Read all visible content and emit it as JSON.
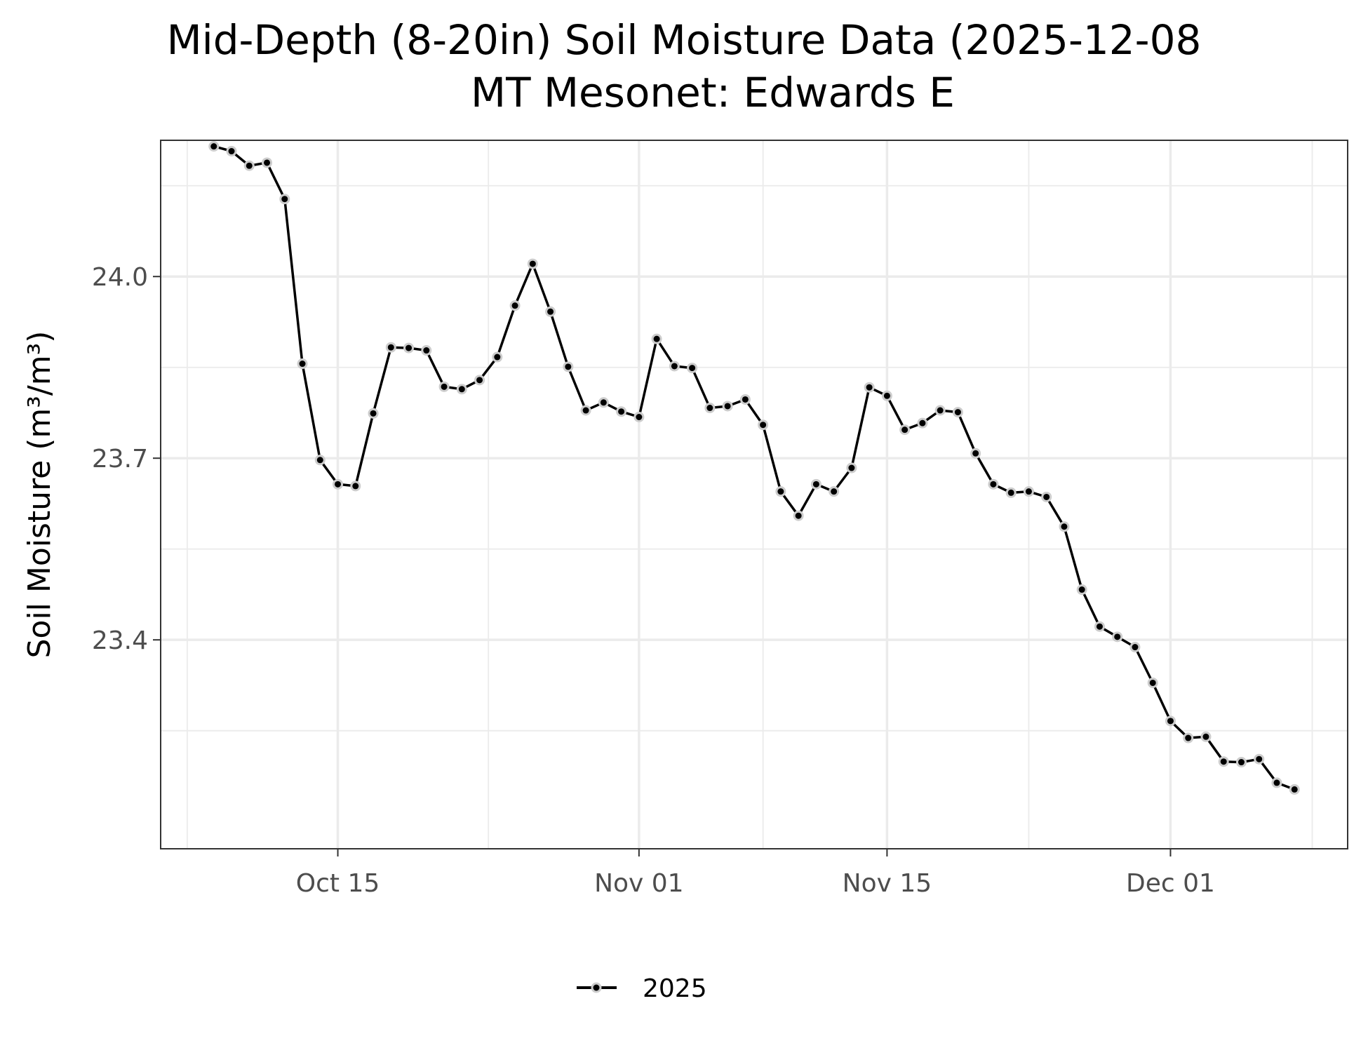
{
  "chart_data": {
    "type": "line",
    "title": "Mid-Depth (8-20in) Soil Moisture Data (2025-12-08",
    "subtitle": "MT Mesonet: Edwards E",
    "xlabel": "",
    "ylabel": "Soil Moisture (m³/m³)",
    "x_axis": {
      "type": "date",
      "range": [
        "2025-10-05",
        "2025-12-11"
      ],
      "ticks": [
        {
          "date": "2025-10-15",
          "label": "Oct 15"
        },
        {
          "date": "2025-11-01",
          "label": "Nov 01"
        },
        {
          "date": "2025-11-15",
          "label": "Nov 15"
        },
        {
          "date": "2025-12-01",
          "label": "Dec 01"
        }
      ]
    },
    "y_axis": {
      "range": [
        23.055,
        24.225
      ],
      "ticks": [
        {
          "value": 24.0,
          "label": "24.0"
        },
        {
          "value": 23.7,
          "label": "23.7"
        },
        {
          "value": 23.4,
          "label": "23.4"
        }
      ]
    },
    "grid": true,
    "legend": {
      "position": "bottom",
      "entries": [
        "2025"
      ]
    },
    "colors": {
      "line": "#000000",
      "point_halo": "#cccccc",
      "grid": "#ebebeb",
      "border": "#333333"
    },
    "series": [
      {
        "name": "2025",
        "x": [
          "2025-10-08",
          "2025-10-09",
          "2025-10-10",
          "2025-10-11",
          "2025-10-12",
          "2025-10-13",
          "2025-10-14",
          "2025-10-15",
          "2025-10-16",
          "2025-10-17",
          "2025-10-18",
          "2025-10-19",
          "2025-10-20",
          "2025-10-21",
          "2025-10-22",
          "2025-10-23",
          "2025-10-24",
          "2025-10-25",
          "2025-10-26",
          "2025-10-27",
          "2025-10-28",
          "2025-10-29",
          "2025-10-30",
          "2025-10-31",
          "2025-11-01",
          "2025-11-02",
          "2025-11-03",
          "2025-11-04",
          "2025-11-05",
          "2025-11-06",
          "2025-11-07",
          "2025-11-08",
          "2025-11-09",
          "2025-11-10",
          "2025-11-11",
          "2025-11-12",
          "2025-11-13",
          "2025-11-14",
          "2025-11-15",
          "2025-11-16",
          "2025-11-17",
          "2025-11-18",
          "2025-11-19",
          "2025-11-20",
          "2025-11-21",
          "2025-11-22",
          "2025-11-23",
          "2025-11-24",
          "2025-11-25",
          "2025-11-26",
          "2025-11-27",
          "2025-11-28",
          "2025-11-29",
          "2025-11-30",
          "2025-12-01",
          "2025-12-02",
          "2025-12-03",
          "2025-12-04",
          "2025-12-05",
          "2025-12-06",
          "2025-12-07",
          "2025-12-08"
        ],
        "y": [
          24.215,
          24.207,
          24.183,
          24.188,
          24.128,
          23.856,
          23.697,
          23.657,
          23.654,
          23.774,
          23.883,
          23.882,
          23.878,
          23.818,
          23.814,
          23.829,
          23.867,
          23.952,
          24.021,
          23.942,
          23.851,
          23.779,
          23.792,
          23.777,
          23.768,
          23.897,
          23.852,
          23.849,
          23.783,
          23.786,
          23.797,
          23.755,
          23.645,
          23.605,
          23.657,
          23.645,
          23.684,
          23.817,
          23.803,
          23.747,
          23.758,
          23.779,
          23.776,
          23.708,
          23.657,
          23.643,
          23.645,
          23.636,
          23.587,
          23.483,
          23.422,
          23.405,
          23.388,
          23.329,
          23.266,
          23.238,
          23.24,
          23.199,
          23.198,
          23.203,
          23.164,
          23.153
        ]
      }
    ]
  }
}
